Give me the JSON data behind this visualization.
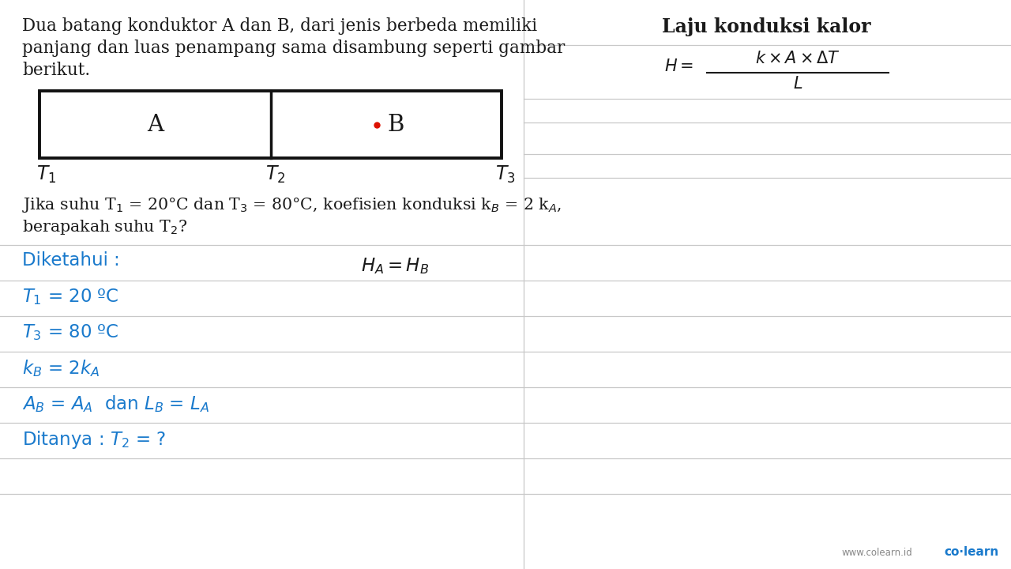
{
  "bg_color": "#ffffff",
  "text_color_black": "#1a1a1a",
  "text_color_blue": "#1a7acc",
  "line_color": "#c8c8c8",
  "box_border_color": "#111111",
  "red_dot_color": "#dd1100",
  "problem_line1": "Dua batang konduktor A dan B, dari jenis berbeda memiliki",
  "problem_line2": "panjang dan luas penampang sama disambung seperti gambar",
  "problem_line3": "berikut.",
  "question_line1": "Jika suhu T$_1$ = 20°C dan T$_3$ = 80°C, koefisien konduksi k$_B$ = 2 k$_A$,",
  "question_line2": "berapakah suhu T$_2$?",
  "sidebar_title": "Laju konduksi kalor",
  "diketahui_label": "Diketahui :",
  "HA_HB": "$H_A = H_B$",
  "T1_val": "$T_1$ = 20 ºC",
  "T3_val": "$T_3$ = 80 ºC",
  "kB_val": "$k_B$ = 2$k_A$",
  "AB_val": "$A_B$ = $A_A$  dan $L_B$ = $L_A$",
  "ditanya": "Ditanya : $T_2$ = ?",
  "watermark_left": "www.colearn.id",
  "watermark_right": "co·learn"
}
